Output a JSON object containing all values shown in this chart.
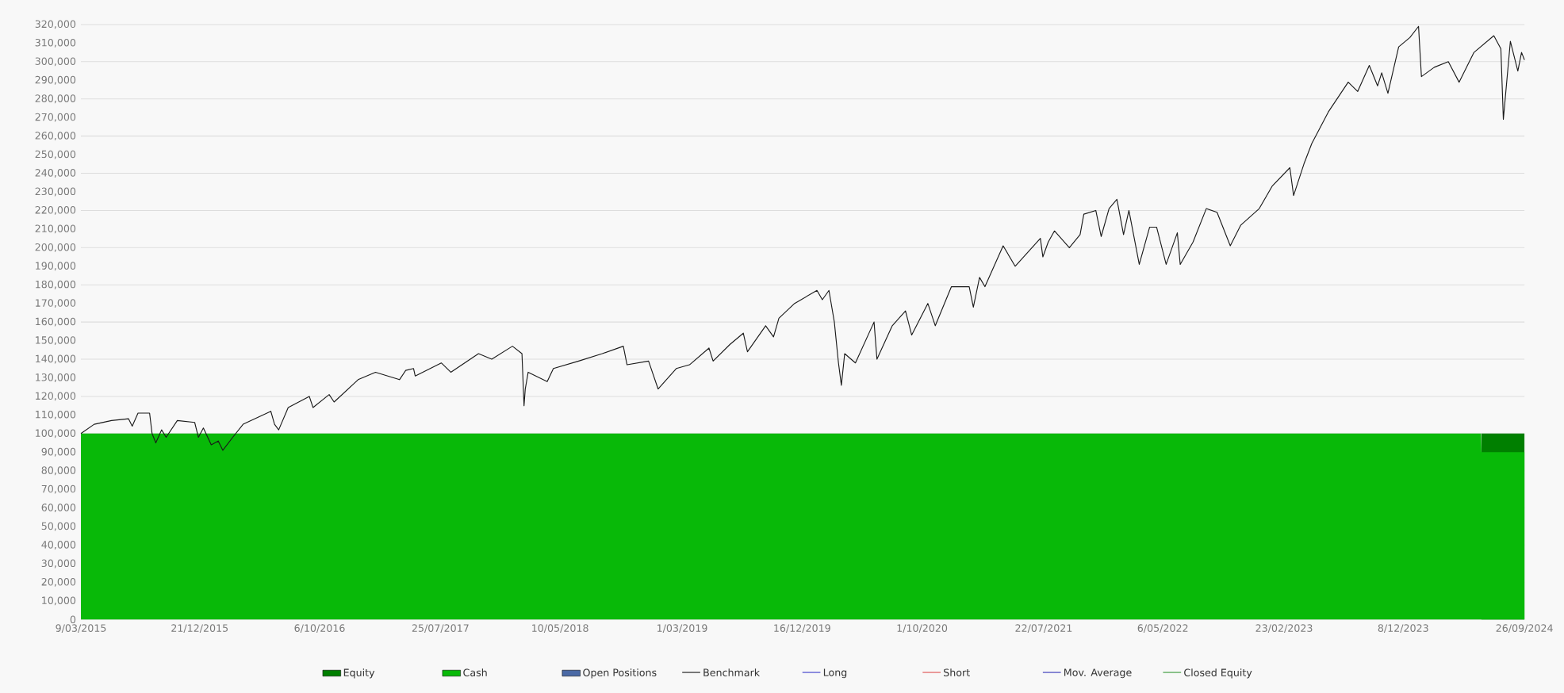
{
  "chart_data": {
    "type": "line",
    "xlim": [
      "2015-03-09",
      "2024-09-26"
    ],
    "xticks": [
      {
        "value": "2015-03-09",
        "label": "9/03/2015"
      },
      {
        "value": "2015-12-21",
        "label": "21/12/2015"
      },
      {
        "value": "2016-10-06",
        "label": "6/10/2016"
      },
      {
        "value": "2017-07-25",
        "label": "25/07/2017"
      },
      {
        "value": "2018-05-10",
        "label": "10/05/2018"
      },
      {
        "value": "2019-03-01",
        "label": "1/03/2019"
      },
      {
        "value": "2019-12-16",
        "label": "16/12/2019"
      },
      {
        "value": "2020-10-01",
        "label": "1/10/2020"
      },
      {
        "value": "2021-07-22",
        "label": "22/07/2021"
      },
      {
        "value": "2022-05-06",
        "label": "6/05/2022"
      },
      {
        "value": "2023-02-23",
        "label": "23/02/2023"
      },
      {
        "value": "2023-12-08",
        "label": "8/12/2023"
      },
      {
        "value": "2024-09-26",
        "label": "26/09/2024"
      }
    ],
    "ylim": [
      0,
      320000
    ],
    "yticks": [
      {
        "value": 0,
        "label": "0"
      },
      {
        "value": 10000,
        "label": "10,000"
      },
      {
        "value": 20000,
        "label": "20,000"
      },
      {
        "value": 30000,
        "label": "30,000"
      },
      {
        "value": 40000,
        "label": "40,000"
      },
      {
        "value": 50000,
        "label": "50,000"
      },
      {
        "value": 60000,
        "label": "60,000"
      },
      {
        "value": 70000,
        "label": "70,000"
      },
      {
        "value": 80000,
        "label": "80,000"
      },
      {
        "value": 90000,
        "label": "90,000"
      },
      {
        "value": 100000,
        "label": "100,000"
      },
      {
        "value": 110000,
        "label": "110,000"
      },
      {
        "value": 120000,
        "label": "120,000"
      },
      {
        "value": 130000,
        "label": "130,000"
      },
      {
        "value": 140000,
        "label": "140,000"
      },
      {
        "value": 150000,
        "label": "150,000"
      },
      {
        "value": 160000,
        "label": "160,000"
      },
      {
        "value": 170000,
        "label": "170,000"
      },
      {
        "value": 180000,
        "label": "180,000"
      },
      {
        "value": 190000,
        "label": "190,000"
      },
      {
        "value": 200000,
        "label": "200,000"
      },
      {
        "value": 210000,
        "label": "210,000"
      },
      {
        "value": 220000,
        "label": "220,000"
      },
      {
        "value": 230000,
        "label": "230,000"
      },
      {
        "value": 240000,
        "label": "240,000"
      },
      {
        "value": 250000,
        "label": "250,000"
      },
      {
        "value": 260000,
        "label": "260,000"
      },
      {
        "value": 270000,
        "label": "270,000"
      },
      {
        "value": 280000,
        "label": "280,000"
      },
      {
        "value": 290000,
        "label": "290,000"
      },
      {
        "value": 300000,
        "label": "300,000"
      },
      {
        "value": 310000,
        "label": "310,000"
      },
      {
        "value": 320000,
        "label": "320,000"
      }
    ],
    "grid": "y",
    "legend": "bottom",
    "series": [
      {
        "name": "Equity",
        "type": "area",
        "color": "#007f00",
        "x": [
          "2024-06-14",
          "2024-09-26"
        ],
        "values": [
          100000,
          100000
        ]
      },
      {
        "name": "Cash",
        "type": "area",
        "color": "#08b908",
        "x": [
          "2015-03-09",
          "2024-06-13",
          "2024-06-14",
          "2024-09-26"
        ],
        "values": [
          100000,
          100000,
          90000,
          90000
        ]
      },
      {
        "name": "Open Positions",
        "type": "area",
        "color": "#4a69a5"
      },
      {
        "name": "Benchmark",
        "color": "#1a1a1a",
        "x": [
          "2015-03-09",
          "2015-04-10",
          "2015-05-22",
          "2015-07-02",
          "2015-07-11",
          "2015-07-25",
          "2015-08-22",
          "2015-08-28",
          "2015-09-06",
          "2015-09-20",
          "2015-10-01",
          "2015-10-28",
          "2015-12-09",
          "2015-12-18",
          "2015-12-30",
          "2016-01-18",
          "2016-02-04",
          "2016-02-15",
          "2016-03-10",
          "2016-04-04",
          "2016-06-10",
          "2016-06-19",
          "2016-06-29",
          "2016-07-22",
          "2016-09-11",
          "2016-09-20",
          "2016-10-29",
          "2016-11-10",
          "2017-01-07",
          "2017-02-18",
          "2017-04-17",
          "2017-05-02",
          "2017-05-21",
          "2017-05-25",
          "2017-07-27",
          "2017-08-19",
          "2017-10-25",
          "2017-11-26",
          "2018-01-15",
          "2018-02-07",
          "2018-02-12",
          "2018-02-15",
          "2018-02-22",
          "2018-04-09",
          "2018-04-24",
          "2018-06-24",
          "2018-08-20",
          "2018-10-10",
          "2018-10-19",
          "2018-12-10",
          "2019-01-02",
          "2019-02-15",
          "2019-03-19",
          "2019-05-05",
          "2019-05-15",
          "2019-06-25",
          "2019-07-27",
          "2019-08-06",
          "2019-09-19",
          "2019-10-08",
          "2019-10-21",
          "2019-11-28",
          "2020-01-21",
          "2020-02-03",
          "2020-02-19",
          "2020-03-03",
          "2020-03-13",
          "2020-03-20",
          "2020-03-28",
          "2020-04-23",
          "2020-06-07",
          "2020-06-14",
          "2020-07-21",
          "2020-08-22",
          "2020-09-06",
          "2020-10-15",
          "2020-11-02",
          "2020-12-11",
          "2021-01-23",
          "2021-02-02",
          "2021-02-17",
          "2021-03-02",
          "2021-04-15",
          "2021-05-14",
          "2021-07-14",
          "2021-07-20",
          "2021-08-02",
          "2021-08-17",
          "2021-09-22",
          "2021-10-18",
          "2021-10-27",
          "2021-11-25",
          "2021-12-08",
          "2021-12-27",
          "2022-01-15",
          "2022-01-31",
          "2022-02-13",
          "2022-03-10",
          "2022-04-04",
          "2022-04-21",
          "2022-05-14",
          "2022-06-10",
          "2022-06-17",
          "2022-07-18",
          "2022-08-19",
          "2022-09-14",
          "2022-10-16",
          "2022-11-10",
          "2022-12-25",
          "2023-01-25",
          "2023-03-09",
          "2023-03-18",
          "2023-04-12",
          "2023-05-01",
          "2023-06-10",
          "2023-07-04",
          "2023-07-28",
          "2023-08-20",
          "2023-09-17",
          "2023-10-07",
          "2023-10-17",
          "2023-11-01",
          "2023-11-27",
          "2023-12-24",
          "2024-01-14",
          "2024-01-21",
          "2024-02-21",
          "2024-03-26",
          "2024-04-21",
          "2024-05-27",
          "2024-07-14",
          "2024-07-31",
          "2024-08-06",
          "2024-08-23",
          "2024-09-10",
          "2024-09-19",
          "2024-09-26"
        ],
        "values": [
          100000,
          105000,
          107000,
          108000,
          104000,
          111000,
          111000,
          100000,
          95000,
          102000,
          98000,
          107000,
          106000,
          98000,
          103000,
          94000,
          96000,
          91000,
          98000,
          105000,
          112000,
          105000,
          102000,
          114000,
          120000,
          114000,
          121000,
          117000,
          129000,
          133000,
          129000,
          134000,
          135000,
          131000,
          138000,
          133000,
          143000,
          140000,
          147000,
          143000,
          115000,
          124000,
          133000,
          128000,
          135000,
          139000,
          143000,
          147000,
          137000,
          139000,
          124000,
          135000,
          137000,
          146000,
          139000,
          148000,
          154000,
          144000,
          158000,
          152000,
          162000,
          170000,
          177000,
          172000,
          177000,
          160000,
          138000,
          126000,
          143000,
          138000,
          160000,
          140000,
          158000,
          166000,
          153000,
          170000,
          158000,
          179000,
          179000,
          168000,
          184000,
          179000,
          201000,
          190000,
          205000,
          195000,
          203000,
          209000,
          200000,
          207000,
          218000,
          220000,
          206000,
          221000,
          226000,
          207000,
          220000,
          191000,
          211000,
          211000,
          191000,
          208000,
          191000,
          203000,
          221000,
          219000,
          201000,
          212000,
          221000,
          233000,
          243000,
          228000,
          245000,
          256000,
          273000,
          281000,
          289000,
          284000,
          298000,
          287000,
          294000,
          283000,
          308000,
          313000,
          319000,
          292000,
          297000,
          300000,
          289000,
          305000,
          314000,
          307000,
          269000,
          311000,
          295000,
          305000,
          301000
        ]
      },
      {
        "name": "Long",
        "color": "#3f3fcc"
      },
      {
        "name": "Short",
        "color": "#e05555"
      },
      {
        "name": "Mov. Average",
        "color": "#3636b8"
      },
      {
        "name": "Closed Equity",
        "color": "#3a9a3a"
      }
    ]
  }
}
